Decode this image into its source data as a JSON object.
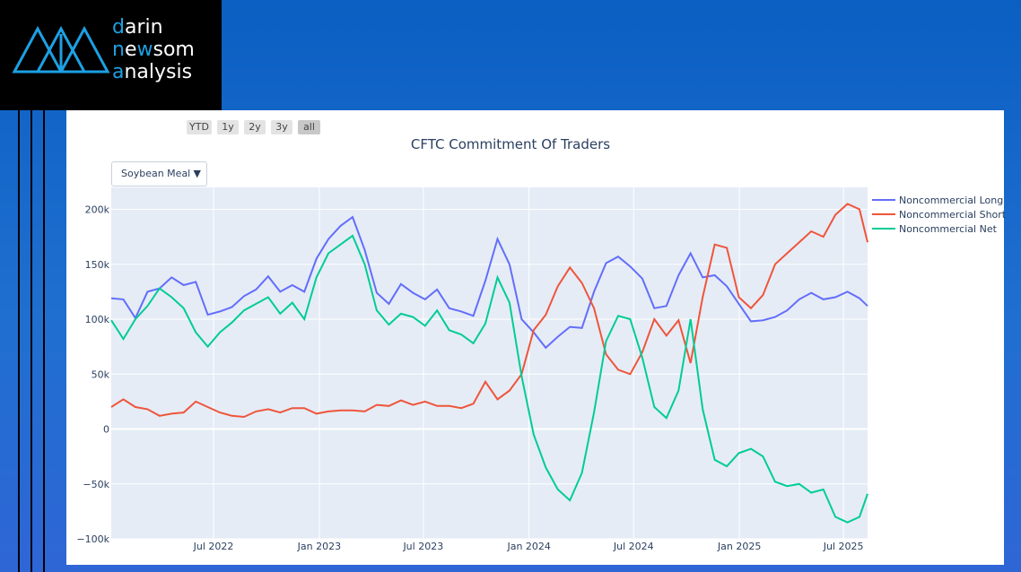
{
  "logo": {
    "lines": [
      {
        "first": "d",
        "rest": "arin"
      },
      {
        "first": "n",
        "mid": "e",
        "hl2": "w",
        "rest": "som"
      },
      {
        "first": "a",
        "rest": "nalysis"
      }
    ]
  },
  "range_selector": [
    "YTD",
    "1y",
    "2y",
    "3y",
    "all"
  ],
  "range_selector_active": "all",
  "dropdown": {
    "selected": "Soybean Meal"
  },
  "colors": {
    "long": "#636efa",
    "short": "#ef553b",
    "net": "#00cc96",
    "plot_bg": "#e5ecf6"
  },
  "chart_data": {
    "type": "line",
    "title": "CFTC Commitment Of Traders",
    "xlabel": "",
    "ylabel": "",
    "x_range": [
      "2022-01-04",
      "2025-08-12"
    ],
    "ylim": [
      -100000,
      220000
    ],
    "y_ticks": [
      {
        "value": 200000,
        "label": "200k"
      },
      {
        "value": 150000,
        "label": "150k"
      },
      {
        "value": 100000,
        "label": "100k"
      },
      {
        "value": 50000,
        "label": "50k"
      },
      {
        "value": 0,
        "label": "0"
      },
      {
        "value": -50000,
        "label": "−50k"
      },
      {
        "value": -100000,
        "label": "−100k"
      }
    ],
    "x_ticks": [
      {
        "date": "2022-07-01",
        "label": "Jul 2022"
      },
      {
        "date": "2023-01-01",
        "label": "Jan 2023"
      },
      {
        "date": "2023-07-01",
        "label": "Jul 2023"
      },
      {
        "date": "2024-01-01",
        "label": "Jan 2024"
      },
      {
        "date": "2024-07-01",
        "label": "Jul 2024"
      },
      {
        "date": "2025-01-01",
        "label": "Jan 2025"
      },
      {
        "date": "2025-07-01",
        "label": "Jul 2025"
      }
    ],
    "legend_position": "right",
    "grid": true,
    "series": [
      {
        "name": "Noncommercial Long",
        "points": [
          [
            "2022-01-04",
            119000
          ],
          [
            "2022-01-25",
            118000
          ],
          [
            "2022-02-15",
            101000
          ],
          [
            "2022-03-08",
            125000
          ],
          [
            "2022-03-29",
            128000
          ],
          [
            "2022-04-19",
            138000
          ],
          [
            "2022-05-10",
            131000
          ],
          [
            "2022-05-31",
            134000
          ],
          [
            "2022-06-21",
            104000
          ],
          [
            "2022-07-12",
            107000
          ],
          [
            "2022-08-02",
            111000
          ],
          [
            "2022-08-23",
            121000
          ],
          [
            "2022-09-13",
            127000
          ],
          [
            "2022-10-04",
            139000
          ],
          [
            "2022-10-25",
            125000
          ],
          [
            "2022-11-15",
            131000
          ],
          [
            "2022-12-06",
            125000
          ],
          [
            "2022-12-27",
            155000
          ],
          [
            "2023-01-17",
            173000
          ],
          [
            "2023-02-07",
            185000
          ],
          [
            "2023-02-28",
            193000
          ],
          [
            "2023-03-21",
            163000
          ],
          [
            "2023-04-11",
            124000
          ],
          [
            "2023-05-02",
            114000
          ],
          [
            "2023-05-23",
            132000
          ],
          [
            "2023-06-13",
            124000
          ],
          [
            "2023-07-04",
            118000
          ],
          [
            "2023-07-25",
            127000
          ],
          [
            "2023-08-15",
            110000
          ],
          [
            "2023-09-05",
            107000
          ],
          [
            "2023-09-26",
            103000
          ],
          [
            "2023-10-17",
            135000
          ],
          [
            "2023-11-07",
            173000
          ],
          [
            "2023-11-28",
            150000
          ],
          [
            "2023-12-19",
            100000
          ],
          [
            "2024-01-09",
            88000
          ],
          [
            "2024-01-30",
            74000
          ],
          [
            "2024-02-20",
            84000
          ],
          [
            "2024-03-12",
            93000
          ],
          [
            "2024-04-02",
            92000
          ],
          [
            "2024-04-23",
            125000
          ],
          [
            "2024-05-14",
            151000
          ],
          [
            "2024-06-04",
            157000
          ],
          [
            "2024-06-25",
            148000
          ],
          [
            "2024-07-16",
            137000
          ],
          [
            "2024-08-06",
            110000
          ],
          [
            "2024-08-27",
            112000
          ],
          [
            "2024-09-17",
            140000
          ],
          [
            "2024-10-08",
            160000
          ],
          [
            "2024-10-29",
            138000
          ],
          [
            "2024-11-19",
            140000
          ],
          [
            "2024-12-10",
            130000
          ],
          [
            "2024-12-31",
            114000
          ],
          [
            "2025-01-21",
            98000
          ],
          [
            "2025-02-11",
            99000
          ],
          [
            "2025-03-04",
            102000
          ],
          [
            "2025-03-25",
            108000
          ],
          [
            "2025-04-15",
            118000
          ],
          [
            "2025-05-06",
            124000
          ],
          [
            "2025-05-27",
            118000
          ],
          [
            "2025-06-17",
            120000
          ],
          [
            "2025-07-08",
            125000
          ],
          [
            "2025-07-29",
            119000
          ],
          [
            "2025-08-12",
            112000
          ]
        ]
      },
      {
        "name": "Noncommercial Short",
        "points": [
          [
            "2022-01-04",
            20000
          ],
          [
            "2022-01-25",
            27000
          ],
          [
            "2022-02-15",
            20000
          ],
          [
            "2022-03-08",
            18000
          ],
          [
            "2022-03-29",
            12000
          ],
          [
            "2022-04-19",
            14000
          ],
          [
            "2022-05-10",
            15000
          ],
          [
            "2022-05-31",
            25000
          ],
          [
            "2022-06-21",
            20000
          ],
          [
            "2022-07-12",
            15000
          ],
          [
            "2022-08-02",
            12000
          ],
          [
            "2022-08-23",
            11000
          ],
          [
            "2022-09-13",
            16000
          ],
          [
            "2022-10-04",
            18000
          ],
          [
            "2022-10-25",
            15000
          ],
          [
            "2022-11-15",
            19000
          ],
          [
            "2022-12-06",
            19000
          ],
          [
            "2022-12-27",
            14000
          ],
          [
            "2023-01-17",
            16000
          ],
          [
            "2023-02-07",
            17000
          ],
          [
            "2023-02-28",
            17000
          ],
          [
            "2023-03-21",
            16000
          ],
          [
            "2023-04-11",
            22000
          ],
          [
            "2023-05-02",
            21000
          ],
          [
            "2023-05-23",
            26000
          ],
          [
            "2023-06-13",
            22000
          ],
          [
            "2023-07-04",
            25000
          ],
          [
            "2023-07-25",
            21000
          ],
          [
            "2023-08-15",
            21000
          ],
          [
            "2023-09-05",
            19000
          ],
          [
            "2023-09-26",
            23000
          ],
          [
            "2023-10-17",
            43000
          ],
          [
            "2023-11-07",
            27000
          ],
          [
            "2023-11-28",
            35000
          ],
          [
            "2023-12-19",
            50000
          ],
          [
            "2024-01-09",
            90000
          ],
          [
            "2024-01-30",
            104000
          ],
          [
            "2024-02-20",
            130000
          ],
          [
            "2024-03-12",
            147000
          ],
          [
            "2024-04-02",
            133000
          ],
          [
            "2024-04-23",
            110000
          ],
          [
            "2024-05-14",
            68000
          ],
          [
            "2024-06-04",
            54000
          ],
          [
            "2024-06-25",
            50000
          ],
          [
            "2024-07-16",
            70000
          ],
          [
            "2024-08-06",
            100000
          ],
          [
            "2024-08-27",
            85000
          ],
          [
            "2024-09-17",
            99000
          ],
          [
            "2024-10-08",
            60000
          ],
          [
            "2024-10-29",
            120000
          ],
          [
            "2024-11-19",
            168000
          ],
          [
            "2024-12-10",
            165000
          ],
          [
            "2024-12-31",
            120000
          ],
          [
            "2025-01-21",
            110000
          ],
          [
            "2025-02-11",
            122000
          ],
          [
            "2025-03-04",
            150000
          ],
          [
            "2025-03-25",
            160000
          ],
          [
            "2025-04-15",
            170000
          ],
          [
            "2025-05-06",
            180000
          ],
          [
            "2025-05-27",
            175000
          ],
          [
            "2025-06-17",
            195000
          ],
          [
            "2025-07-08",
            205000
          ],
          [
            "2025-07-29",
            200000
          ],
          [
            "2025-08-12",
            170000
          ]
        ]
      },
      {
        "name": "Noncommercial Net",
        "points": [
          [
            "2022-01-04",
            99000
          ],
          [
            "2022-01-25",
            82000
          ],
          [
            "2022-02-15",
            100000
          ],
          [
            "2022-03-08",
            112000
          ],
          [
            "2022-03-29",
            128000
          ],
          [
            "2022-04-19",
            120000
          ],
          [
            "2022-05-10",
            110000
          ],
          [
            "2022-05-31",
            88000
          ],
          [
            "2022-06-21",
            75000
          ],
          [
            "2022-07-12",
            88000
          ],
          [
            "2022-08-02",
            97000
          ],
          [
            "2022-08-23",
            108000
          ],
          [
            "2022-09-13",
            114000
          ],
          [
            "2022-10-04",
            120000
          ],
          [
            "2022-10-25",
            105000
          ],
          [
            "2022-11-15",
            115000
          ],
          [
            "2022-12-06",
            100000
          ],
          [
            "2022-12-27",
            138000
          ],
          [
            "2023-01-17",
            160000
          ],
          [
            "2023-02-07",
            168000
          ],
          [
            "2023-02-28",
            176000
          ],
          [
            "2023-03-21",
            150000
          ],
          [
            "2023-04-11",
            108000
          ],
          [
            "2023-05-02",
            95000
          ],
          [
            "2023-05-23",
            105000
          ],
          [
            "2023-06-13",
            102000
          ],
          [
            "2023-07-04",
            94000
          ],
          [
            "2023-07-25",
            108000
          ],
          [
            "2023-08-15",
            90000
          ],
          [
            "2023-09-05",
            86000
          ],
          [
            "2023-09-26",
            78000
          ],
          [
            "2023-10-17",
            96000
          ],
          [
            "2023-11-07",
            138000
          ],
          [
            "2023-11-28",
            115000
          ],
          [
            "2023-12-19",
            48000
          ],
          [
            "2024-01-09",
            -5000
          ],
          [
            "2024-01-30",
            -35000
          ],
          [
            "2024-02-20",
            -55000
          ],
          [
            "2024-03-12",
            -65000
          ],
          [
            "2024-04-02",
            -40000
          ],
          [
            "2024-04-23",
            15000
          ],
          [
            "2024-05-14",
            80000
          ],
          [
            "2024-06-04",
            103000
          ],
          [
            "2024-06-25",
            100000
          ],
          [
            "2024-07-16",
            65000
          ],
          [
            "2024-08-06",
            20000
          ],
          [
            "2024-08-27",
            10000
          ],
          [
            "2024-09-17",
            35000
          ],
          [
            "2024-10-08",
            100000
          ],
          [
            "2024-10-29",
            18000
          ],
          [
            "2024-11-19",
            -28000
          ],
          [
            "2024-12-10",
            -34000
          ],
          [
            "2024-12-31",
            -22000
          ],
          [
            "2025-01-21",
            -18000
          ],
          [
            "2025-02-11",
            -25000
          ],
          [
            "2025-03-04",
            -48000
          ],
          [
            "2025-03-25",
            -52000
          ],
          [
            "2025-04-15",
            -50000
          ],
          [
            "2025-05-06",
            -58000
          ],
          [
            "2025-05-27",
            -55000
          ],
          [
            "2025-06-17",
            -80000
          ],
          [
            "2025-07-08",
            -85000
          ],
          [
            "2025-07-29",
            -80000
          ],
          [
            "2025-08-12",
            -59000
          ]
        ]
      }
    ]
  }
}
